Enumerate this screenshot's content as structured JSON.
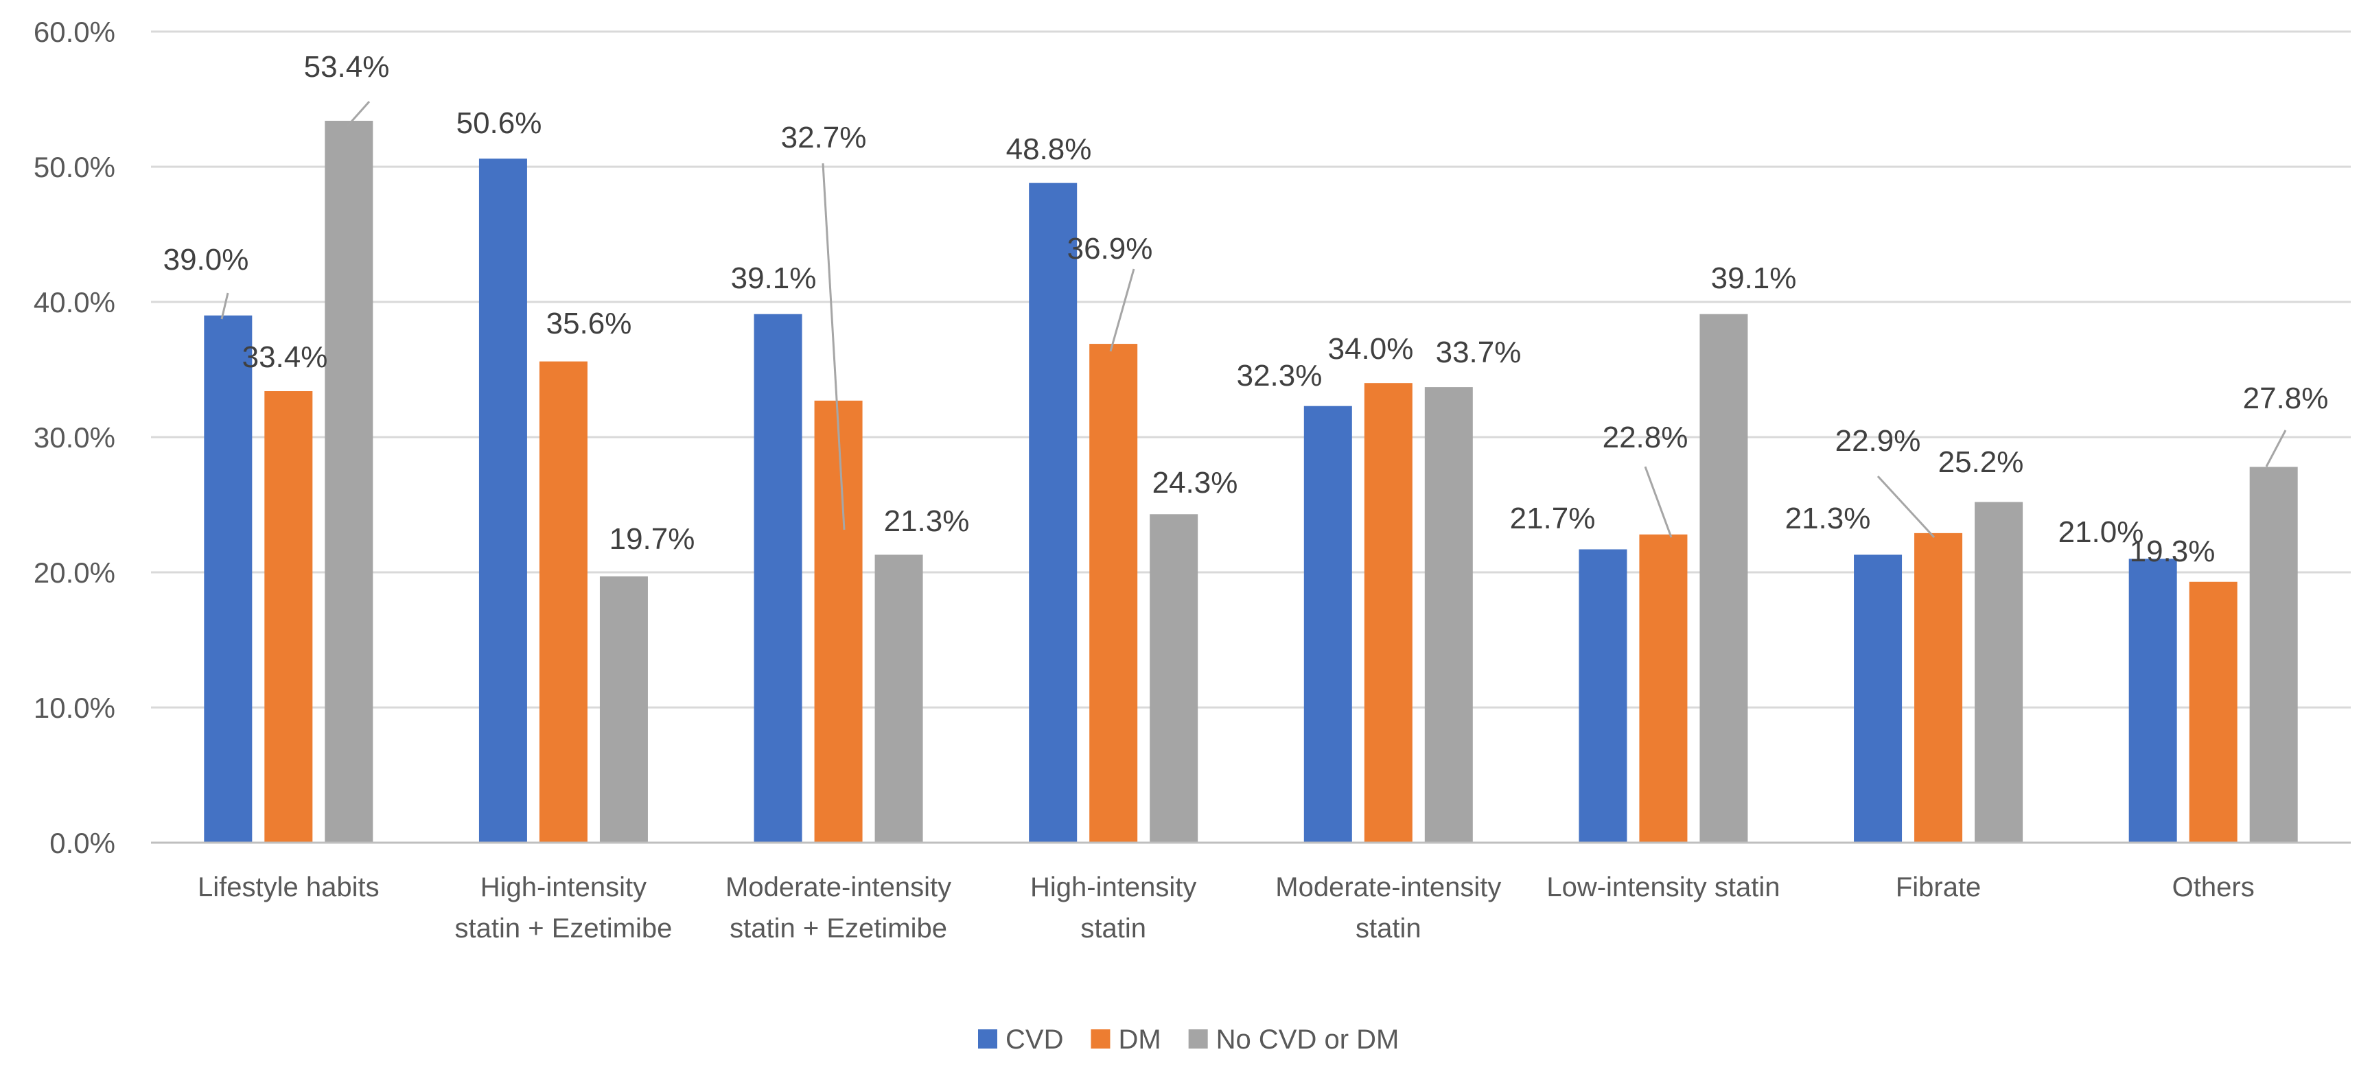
{
  "chart_data": {
    "type": "bar",
    "categories": [
      [
        "Lifestyle habits"
      ],
      [
        "High-intensity",
        "statin + Ezetimibe"
      ],
      [
        "Moderate-intensity",
        "statin + Ezetimibe"
      ],
      [
        "High-intensity",
        "statin"
      ],
      [
        "Moderate-intensity",
        "statin"
      ],
      [
        "Low-intensity statin"
      ],
      [
        "Fibrate"
      ],
      [
        "Others"
      ]
    ],
    "series": [
      {
        "name": "CVD",
        "color": "#4472C4",
        "values": [
          39.0,
          50.6,
          39.1,
          48.8,
          32.3,
          21.7,
          21.3,
          21.0
        ]
      },
      {
        "name": "DM",
        "color": "#ED7D31",
        "values": [
          33.4,
          35.6,
          32.7,
          36.9,
          34.0,
          22.8,
          22.9,
          19.3
        ]
      },
      {
        "name": "No CVD or DM",
        "color": "#A5A5A5",
        "values": [
          53.4,
          19.7,
          21.3,
          24.3,
          33.7,
          39.1,
          25.2,
          27.8
        ]
      }
    ],
    "value_labels": [
      [
        "39.0%",
        "50.6%",
        "39.1%",
        "48.8%",
        "32.3%",
        "21.7%",
        "21.3%",
        "21.0%"
      ],
      [
        "33.4%",
        "35.6%",
        "32.7%",
        "36.9%",
        "34.0%",
        "22.8%",
        "22.9%",
        "19.3%"
      ],
      [
        "53.4%",
        "19.7%",
        "21.3%",
        "24.3%",
        "33.7%",
        "39.1%",
        "25.2%",
        "27.8%"
      ]
    ],
    "y_ticks": [
      "0.0%",
      "10.0%",
      "20.0%",
      "30.0%",
      "40.0%",
      "50.0%",
      "60.0%"
    ],
    "ylim": [
      0,
      60
    ],
    "grid": true,
    "legend_position": "bottom-center",
    "title": "",
    "xlabel": "",
    "ylabel": ""
  }
}
